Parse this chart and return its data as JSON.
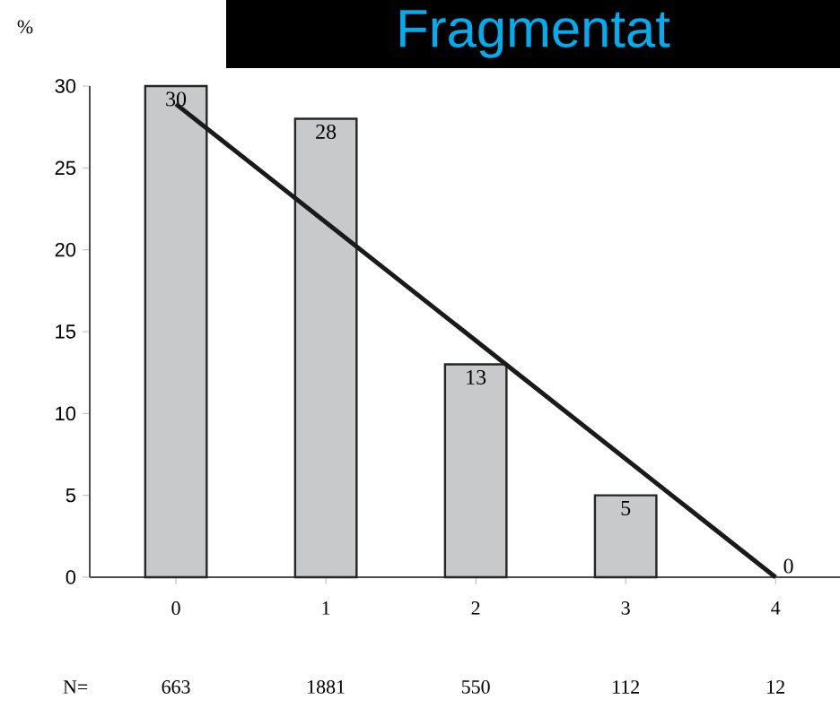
{
  "chart_data": {
    "type": "bar",
    "title": "Fragmentat",
    "ylabel": "%",
    "categories": [
      "0",
      "1",
      "2",
      "3",
      "4"
    ],
    "series": [
      {
        "color": "#c8c9cb",
        "values": [
          30,
          28,
          13,
          5,
          0
        ],
        "value_labels": [
          "30",
          "28",
          "13",
          "5",
          "0"
        ]
      },
      {
        "type": "line",
        "color": "#1a1a1a",
        "values": [
          28.9,
          null,
          null,
          null,
          0
        ]
      }
    ],
    "ylim": [
      0,
      30
    ],
    "yticks": [
      0,
      5,
      10,
      15,
      20,
      25,
      30
    ],
    "annotations": [
      "N=",
      "663",
      "1881",
      "550",
      "112",
      "12"
    ]
  }
}
